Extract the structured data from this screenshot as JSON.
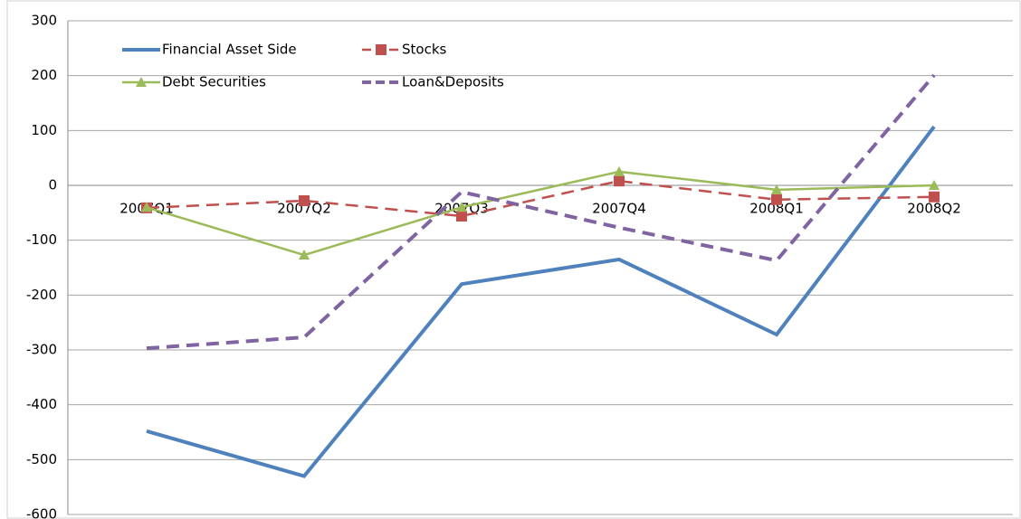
{
  "chart_data": {
    "type": "line",
    "categories": [
      "2007Q1",
      "2007Q2",
      "2007Q3",
      "2007Q4",
      "2008Q1",
      "2008Q2"
    ],
    "series": [
      {
        "name": "Financial Asset Side",
        "color": "#4f81bd",
        "dashed": false,
        "marker": "none",
        "values": [
          -448,
          -530,
          -180,
          -135,
          -272,
          107
        ]
      },
      {
        "name": "Stocks",
        "color": "#c0504d",
        "dashed": true,
        "marker": "square",
        "values": [
          -41,
          -28,
          -56,
          8,
          -26,
          -21
        ]
      },
      {
        "name": "Debt Securities",
        "color": "#9bbb59",
        "dashed": false,
        "marker": "triangle",
        "values": [
          -40,
          -127,
          -40,
          25,
          -8,
          0
        ]
      },
      {
        "name": "Loan&Deposits",
        "color": "#8064a2",
        "dashed": true,
        "marker": "none",
        "values": [
          -297,
          -277,
          -12,
          -77,
          -137,
          201
        ]
      }
    ],
    "ylim": [
      -600,
      300
    ],
    "yticks": [
      -600,
      -500,
      -400,
      -300,
      -200,
      -100,
      0,
      100,
      200,
      300
    ],
    "grid": true,
    "legend": "top-left"
  }
}
